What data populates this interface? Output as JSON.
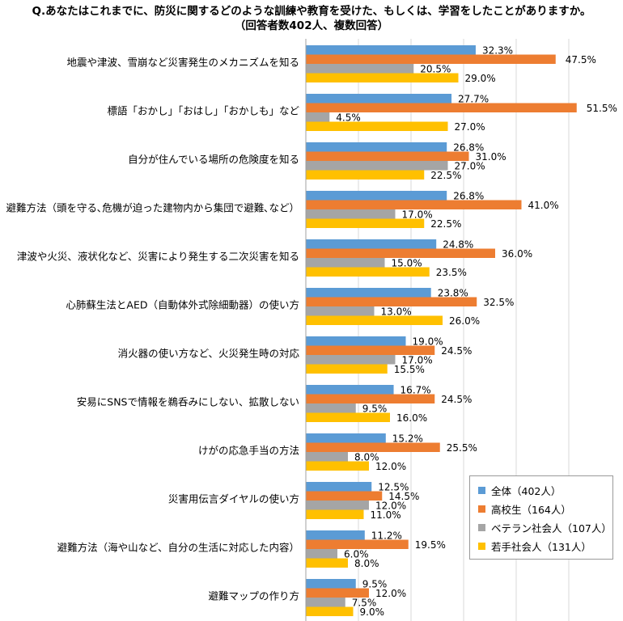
{
  "chart_data": {
    "type": "bar",
    "orientation": "horizontal",
    "title": "Q.あなたはこれまでに、防災に関するどのような訓練や教育を受けた、もしくは、学習をしたことがありますか。",
    "subtitle": "（回答者数402人、複数回答）",
    "categories": [
      "地震や津波、雪崩など災害発生のメカニズムを知る",
      "標語「おかし」「おはし」「おかしも」など",
      "自分が住んでいる場所の危険度を知る",
      "避難方法（頭を守る､危機が迫った建物内から集団で避難､など）",
      "津波や火災、液状化など、災害により発生する二次災害を知る",
      "心肺蘇生法とAED（自動体外式除細動器）の使い方",
      "消火器の使い方など、火災発生時の対応",
      "安易にSNSで情報を鵜呑みにしない、拡散しない",
      "けがの応急手当の方法",
      "災害用伝言ダイヤルの使い方",
      "避難方法（海や山など、自分の生活に対応した内容）",
      "避難マップの作り方"
    ],
    "series": [
      {
        "name": "全体（402人）",
        "color": "#5B9BD5",
        "values": [
          32.3,
          27.7,
          26.8,
          26.8,
          24.8,
          23.8,
          19.0,
          16.7,
          15.2,
          12.5,
          11.2,
          9.5
        ]
      },
      {
        "name": "高校生（164人）",
        "color": "#ED7D31",
        "values": [
          47.5,
          51.5,
          31.0,
          41.0,
          36.0,
          32.5,
          24.5,
          24.5,
          25.5,
          14.5,
          19.5,
          12.0
        ]
      },
      {
        "name": "ベテラン社会人（107人）",
        "color": "#A5A5A5",
        "values": [
          20.5,
          4.5,
          27.0,
          17.0,
          15.0,
          13.0,
          17.0,
          9.5,
          8.0,
          12.0,
          6.0,
          7.5
        ]
      },
      {
        "name": "若手社会人（131人）",
        "color": "#FFC000",
        "values": [
          29.0,
          27.0,
          22.5,
          22.5,
          23.5,
          26.0,
          15.5,
          16.0,
          12.0,
          11.0,
          8.0,
          9.0
        ]
      }
    ],
    "value_suffix": "%",
    "xlim": [
      0,
      60
    ],
    "grid": true,
    "legend_position": "bottom-right"
  }
}
